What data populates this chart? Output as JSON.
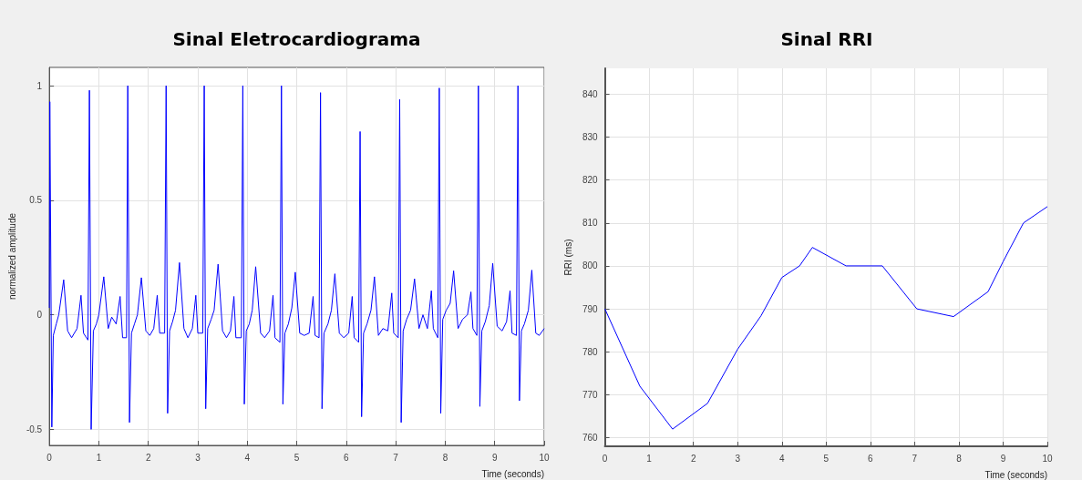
{
  "chart_data": [
    {
      "type": "line",
      "title": "Sinal Eletrocardiograma",
      "xlabel": "Time (seconds)",
      "ylabel": "normalized amplitude",
      "color": "#0000ff",
      "grid": true,
      "xlim": [
        0,
        10
      ],
      "xticks": [
        0,
        1,
        2,
        3,
        4,
        5,
        6,
        7,
        8,
        9,
        10
      ],
      "ylim": [
        -0.57,
        1.08
      ],
      "yticks": [
        -0.5,
        0,
        0.5,
        1
      ],
      "x": [
        0,
        0.01,
        0.05,
        0.08,
        0.14,
        0.19,
        0.29,
        0.37,
        0.45,
        0.56,
        0.64,
        0.69,
        0.78,
        0.81,
        0.845,
        0.89,
        0.95,
        1.0,
        1.1,
        1.19,
        1.26,
        1.35,
        1.43,
        1.48,
        1.56,
        1.585,
        1.62,
        1.66,
        1.72,
        1.78,
        1.86,
        1.95,
        2.03,
        2.11,
        2.18,
        2.23,
        2.33,
        2.36,
        2.39,
        2.43,
        2.49,
        2.55,
        2.63,
        2.72,
        2.8,
        2.89,
        2.96,
        3.0,
        3.1,
        3.13,
        3.16,
        3.2,
        3.27,
        3.33,
        3.41,
        3.5,
        3.58,
        3.66,
        3.73,
        3.77,
        3.88,
        3.91,
        3.94,
        3.98,
        4.04,
        4.1,
        4.17,
        4.27,
        4.35,
        4.45,
        4.52,
        4.56,
        4.66,
        4.69,
        4.72,
        4.76,
        4.83,
        4.9,
        4.97,
        5.06,
        5.15,
        5.25,
        5.33,
        5.37,
        5.45,
        5.48,
        5.51,
        5.55,
        5.63,
        5.7,
        5.77,
        5.86,
        5.95,
        6.05,
        6.12,
        6.16,
        6.25,
        6.28,
        6.31,
        6.35,
        6.42,
        6.5,
        6.57,
        6.65,
        6.74,
        6.84,
        6.92,
        6.96,
        7.05,
        7.08,
        7.11,
        7.15,
        7.22,
        7.3,
        7.38,
        7.47,
        7.55,
        7.64,
        7.72,
        7.76,
        7.85,
        7.88,
        7.91,
        7.95,
        8.02,
        8.1,
        8.17,
        8.26,
        8.35,
        8.45,
        8.52,
        8.56,
        8.64,
        8.67,
        8.7,
        8.74,
        8.81,
        8.89,
        8.96,
        9.05,
        9.15,
        9.24,
        9.31,
        9.35,
        9.44,
        9.47,
        9.5,
        9.54,
        9.6,
        9.68,
        9.75,
        9.83,
        9.9,
        10.0
      ],
      "values": [
        0.03,
        0.93,
        -0.49,
        -0.09,
        -0.04,
        0.0,
        0.153,
        -0.07,
        -0.1,
        -0.06,
        0.085,
        -0.08,
        -0.11,
        0.98,
        -0.5,
        -0.07,
        -0.04,
        0.0,
        0.166,
        -0.06,
        -0.01,
        -0.04,
        0.08,
        -0.1,
        -0.1,
        1.0,
        -0.47,
        -0.08,
        -0.04,
        0.0,
        0.162,
        -0.07,
        -0.09,
        -0.06,
        0.085,
        -0.08,
        -0.08,
        1.0,
        -0.43,
        -0.07,
        -0.03,
        0.02,
        0.228,
        -0.06,
        -0.1,
        -0.06,
        0.085,
        -0.08,
        -0.08,
        1.0,
        -0.41,
        -0.06,
        -0.02,
        0.02,
        0.221,
        -0.07,
        -0.1,
        -0.07,
        0.08,
        -0.1,
        -0.1,
        1.0,
        -0.39,
        -0.07,
        -0.04,
        0.02,
        0.21,
        -0.08,
        -0.1,
        -0.07,
        0.085,
        -0.1,
        -0.12,
        1.0,
        -0.39,
        -0.08,
        -0.04,
        0.03,
        0.186,
        -0.08,
        -0.09,
        -0.08,
        0.08,
        -0.09,
        -0.1,
        0.97,
        -0.41,
        -0.08,
        -0.04,
        0.02,
        0.179,
        -0.08,
        -0.1,
        -0.08,
        0.08,
        -0.1,
        -0.12,
        0.8,
        -0.445,
        -0.08,
        -0.04,
        0.02,
        0.166,
        -0.09,
        -0.06,
        -0.07,
        0.095,
        -0.08,
        -0.1,
        0.94,
        -0.47,
        -0.07,
        -0.02,
        0.02,
        0.157,
        -0.06,
        0.0,
        -0.06,
        0.105,
        -0.06,
        -0.1,
        0.99,
        -0.43,
        -0.02,
        0.02,
        0.05,
        0.192,
        -0.06,
        -0.02,
        0.0,
        0.1,
        -0.06,
        -0.09,
        1.0,
        -0.4,
        -0.07,
        -0.03,
        0.04,
        0.225,
        -0.05,
        -0.07,
        -0.03,
        0.105,
        -0.08,
        -0.09,
        1.0,
        -0.375,
        -0.07,
        -0.04,
        0.02,
        0.195,
        -0.08,
        -0.09,
        -0.06
      ]
    },
    {
      "type": "line",
      "title": "Sinal RRI",
      "xlabel": "Time (seconds)",
      "ylabel": "RRI (ms)",
      "color": "#0000ff",
      "grid": true,
      "xlim": [
        0,
        10
      ],
      "xticks": [
        0,
        1,
        2,
        3,
        4,
        5,
        6,
        7,
        8,
        9,
        10
      ],
      "ylim": [
        758,
        846
      ],
      "yticks": [
        760,
        770,
        780,
        790,
        800,
        810,
        820,
        830,
        840
      ],
      "x": [
        0,
        0.79,
        1.53,
        2.32,
        3.0,
        3.53,
        4.0,
        4.4,
        4.69,
        5.45,
        6.27,
        7.05,
        7.88,
        8.66,
        9.0,
        9.46,
        10
      ],
      "values": [
        790,
        772,
        762,
        768,
        780.6,
        788.4,
        797.3,
        800,
        804.3,
        800,
        800,
        790,
        788.2,
        794,
        801,
        810,
        813.8
      ]
    }
  ]
}
